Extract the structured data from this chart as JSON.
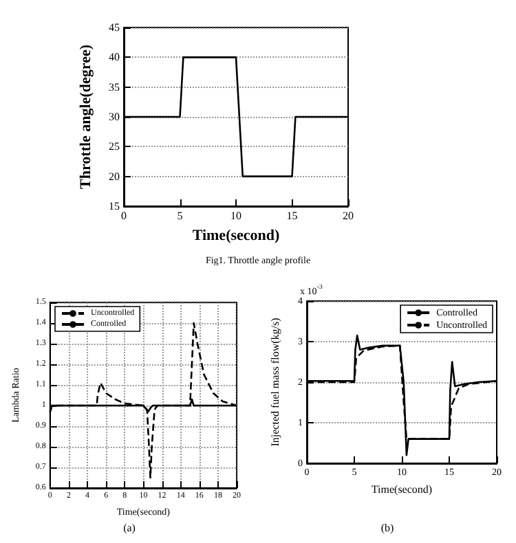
{
  "chart_data": [
    {
      "type": "line",
      "title": "Fig1. Throttle angle profile",
      "xlabel": "Time(second)",
      "ylabel": "Throttle angle(degree)",
      "xlim": [
        0,
        20
      ],
      "xticks": [
        0,
        5,
        10,
        15,
        20
      ],
      "ylim": [
        15,
        45
      ],
      "yticks": [
        15,
        20,
        25,
        30,
        35,
        40,
        45
      ],
      "grid": "y",
      "marker": "none",
      "legend": false,
      "series": [
        {
          "color": "#000000",
          "line_style": "solid",
          "x": [
            0,
            3,
            5,
            5.3,
            10,
            10.6,
            15,
            15.3,
            20
          ],
          "values": [
            30,
            30,
            30,
            40,
            40,
            20,
            20,
            30,
            30
          ]
        }
      ]
    },
    {
      "type": "line",
      "title": "(a)",
      "xlabel": "Time(second)",
      "ylabel": "Lambda Ratio",
      "xlim": [
        0,
        20
      ],
      "xticks": [
        0,
        2,
        4,
        6,
        8,
        10,
        12,
        14,
        16,
        18,
        20
      ],
      "ylim": [
        0.6,
        1.5
      ],
      "yticks": [
        0.6,
        0.7,
        0.8,
        0.9,
        1,
        1.1,
        1.2,
        1.3,
        1.4,
        1.5
      ],
      "grid": true,
      "marker": "none",
      "legend": "top left",
      "series": [
        {
          "name": "Uncontrolled",
          "color": "#000000",
          "line_style": "dashed",
          "x": [
            0,
            0.2,
            5,
            5.1,
            5.4,
            6,
            7,
            8,
            9,
            10,
            10.4,
            10.6,
            10.75,
            10.9,
            11.2,
            11.5,
            15,
            15.1,
            15.4,
            15.8,
            16.5,
            17.5,
            18.5,
            20
          ],
          "values": [
            0.97,
            1,
            1,
            1.05,
            1.11,
            1.06,
            1.03,
            1.01,
            1.005,
            1,
            0.98,
            0.8,
            0.65,
            0.8,
            0.98,
            1,
            1,
            1.1,
            1.4,
            1.3,
            1.15,
            1.06,
            1.02,
            1
          ]
        },
        {
          "name": "Controlled",
          "color": "#000000",
          "line_style": "solid",
          "x": [
            0,
            0.2,
            10,
            10.5,
            10.8,
            11,
            15,
            15.2,
            15.4,
            20
          ],
          "values": [
            0.97,
            1,
            1,
            0.97,
            0.99,
            1,
            1,
            1.03,
            1,
            1
          ]
        }
      ]
    },
    {
      "type": "line",
      "title": "(b)",
      "xlabel": "Time(second)",
      "ylabel": "Injected fuel mass flow(kg/s)",
      "annotations": [
        "x 10$^{-3}$"
      ],
      "xlim": [
        0,
        20
      ],
      "xticks": [
        0,
        5,
        10,
        15,
        20
      ],
      "ylim": [
        0,
        4
      ],
      "yticks": [
        0,
        1,
        2,
        3,
        4
      ],
      "grid": "y",
      "marker": "none",
      "legend": "top right",
      "series": [
        {
          "name": "Controlled",
          "color": "#000000",
          "line_style": "solid",
          "x": [
            0,
            5,
            5.1,
            5.3,
            5.6,
            6.5,
            8,
            9.8,
            10.2,
            10.5,
            10.7,
            15,
            15.1,
            15.3,
            15.6,
            16.5,
            18,
            20
          ],
          "values": [
            2.03,
            2.03,
            2.8,
            3.15,
            2.8,
            2.85,
            2.9,
            2.9,
            2,
            0.2,
            0.6,
            0.6,
            1.8,
            2.5,
            1.9,
            1.95,
            2,
            2.03
          ]
        },
        {
          "name": "Uncontrolled",
          "color": "#000000",
          "line_style": "dashed",
          "x": [
            0,
            5,
            5.2,
            6,
            8,
            9.8,
            10.2,
            10.5,
            15,
            15.2,
            16,
            17,
            20
          ],
          "values": [
            2,
            2,
            2.6,
            2.78,
            2.88,
            2.9,
            1.5,
            0.6,
            0.6,
            1.4,
            1.85,
            1.95,
            2.03
          ]
        }
      ]
    }
  ]
}
